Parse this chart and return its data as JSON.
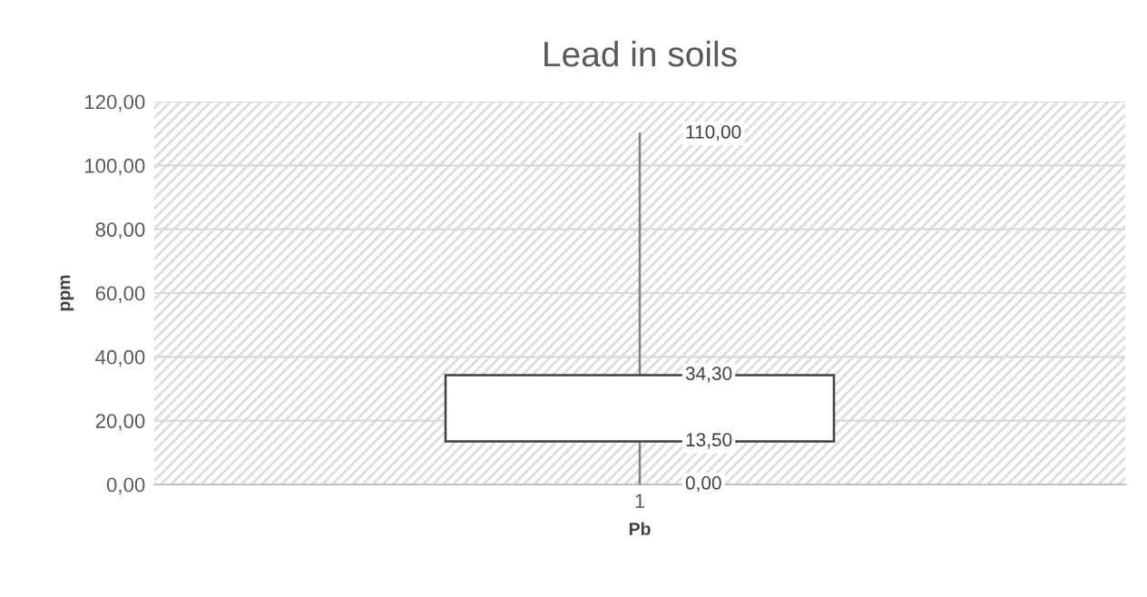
{
  "chart_data": {
    "type": "candlestick",
    "title": "Lead in soils",
    "xlabel": "Pb",
    "ylabel": "ppm",
    "categories": [
      "1"
    ],
    "ohlc": [
      [
        13.5,
        110,
        0,
        34.3
      ]
    ],
    "ylim": [
      0,
      120
    ],
    "yticks": [
      {
        "value": 0,
        "label": "0,00"
      },
      {
        "value": 20,
        "label": "20,00"
      },
      {
        "value": 40,
        "label": "40,00"
      },
      {
        "value": 60,
        "label": "60,00"
      },
      {
        "value": 80,
        "label": "80,00"
      },
      {
        "value": 100,
        "label": "100,00"
      },
      {
        "value": 120,
        "label": "120,00"
      }
    ],
    "grid": "y",
    "annotations": [
      {
        "text": "110,00",
        "x": "1",
        "y": 110
      },
      {
        "text": "34,30",
        "x": "1",
        "y": 34.3
      },
      {
        "text": "13,50",
        "x": "1",
        "y": 13.5
      },
      {
        "text": "0,00",
        "x": "1",
        "y": 0
      }
    ]
  }
}
